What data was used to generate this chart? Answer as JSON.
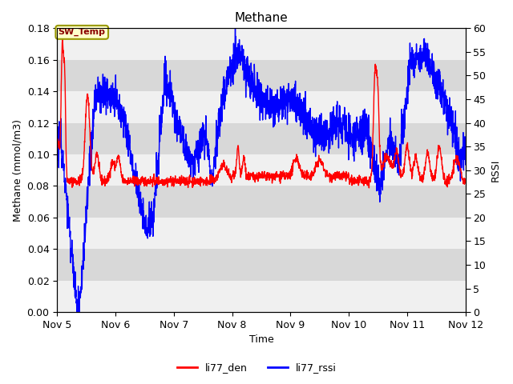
{
  "title": "Methane",
  "xlabel": "Time",
  "ylabel_left": "Methane (mmol/m3)",
  "ylabel_right": "RSSI",
  "ylim_left": [
    0.0,
    0.18
  ],
  "ylim_right": [
    0,
    60
  ],
  "yticks_left": [
    0.0,
    0.02,
    0.04,
    0.06,
    0.08,
    0.1,
    0.12,
    0.14,
    0.16,
    0.18
  ],
  "yticks_right": [
    0,
    5,
    10,
    15,
    20,
    25,
    30,
    35,
    40,
    45,
    50,
    55,
    60
  ],
  "legend_label1": "li77_den",
  "legend_label2": "li77_rssi",
  "legend_color1": "red",
  "legend_color2": "blue",
  "annotation_text": "SW_Temp",
  "annotation_color": "#8B0000",
  "annotation_bg": "#FFFFCC",
  "annotation_border": "#999900",
  "bg_color": "white",
  "plot_bg_color": "#F0F0F0",
  "band_color_light": "#E8E8E8",
  "band_color_dark": "#D8D8D8",
  "title_fontsize": 11,
  "axis_fontsize": 9,
  "tick_fontsize": 9,
  "line_width": 1.0,
  "x_start": 5.0,
  "x_end": 12.0,
  "xtick_positions": [
    5,
    6,
    7,
    8,
    9,
    10,
    11,
    12
  ],
  "xtick_labels": [
    "Nov 5",
    "Nov 6",
    "Nov 7",
    "Nov 8",
    "Nov 9",
    "Nov 10",
    "Nov 11",
    "Nov 12"
  ]
}
